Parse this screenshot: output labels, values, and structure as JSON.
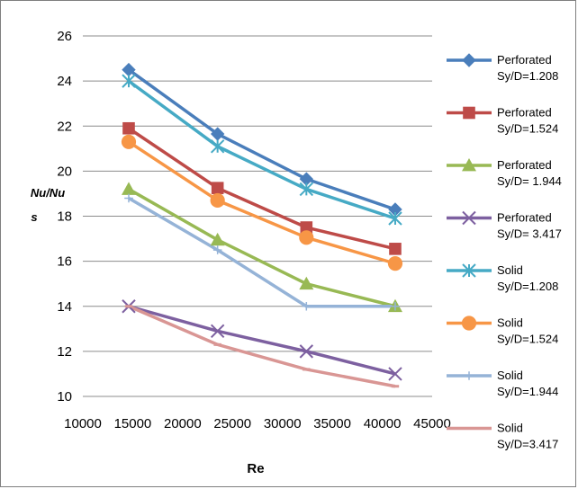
{
  "chart_data": {
    "type": "line",
    "xlabel": "Re",
    "ylabel_line1": "Nu/Nu",
    "ylabel_line2": "s",
    "xlim": [
      10000,
      45000
    ],
    "ylim": [
      10,
      26
    ],
    "x_ticks": [
      "10000",
      "15000",
      "20000",
      "25000",
      "30000",
      "35000",
      "40000",
      "45000"
    ],
    "y_ticks": [
      "10",
      "12",
      "14",
      "16",
      "18",
      "20",
      "22",
      "24",
      "26"
    ],
    "grid": true,
    "legend_position": "right",
    "series": [
      {
        "name_line1": "Perforated",
        "name_line2": "Sy/D=1.208",
        "color": "#4a7ebb",
        "marker": "diamond",
        "x": [
          14600,
          23500,
          32400,
          41300
        ],
        "y": [
          24.5,
          21.65,
          19.65,
          18.3
        ]
      },
      {
        "name_line1": "Perforated",
        "name_line2": "Sy/D=1.524",
        "color": "#be4b48",
        "marker": "square",
        "x": [
          14600,
          23500,
          32400,
          41300
        ],
        "y": [
          21.9,
          19.25,
          17.5,
          16.55
        ]
      },
      {
        "name_line1": "Perforated",
        "name_line2": "Sy/D= 1.944",
        "color": "#98b954",
        "marker": "triangle",
        "x": [
          14600,
          23500,
          32400,
          41300
        ],
        "y": [
          19.2,
          16.95,
          15.0,
          14.0
        ]
      },
      {
        "name_line1": "Perforated",
        "name_line2": "Sy/D= 3.417",
        "color": "#7d60a0",
        "marker": "x",
        "x": [
          14600,
          23500,
          32400,
          41300
        ],
        "y": [
          14.0,
          12.9,
          12.0,
          11.0
        ]
      },
      {
        "name_line1": "Solid",
        "name_line2": "Sy/D=1.208",
        "color": "#46aac5",
        "marker": "star",
        "x": [
          14600,
          23500,
          32400,
          41300
        ],
        "y": [
          24.0,
          21.1,
          19.2,
          17.9
        ]
      },
      {
        "name_line1": "Solid",
        "name_line2": "Sy/D=1.524",
        "color": "#f79646",
        "marker": "circle",
        "x": [
          14600,
          23500,
          32400,
          41300
        ],
        "y": [
          21.3,
          18.7,
          17.05,
          15.9
        ]
      },
      {
        "name_line1": "Solid",
        "name_line2": "Sy/D=1.944",
        "color": "#95b3d7",
        "marker": "plus",
        "x": [
          14600,
          23500,
          32400,
          41300
        ],
        "y": [
          18.8,
          16.5,
          14.0,
          14.0
        ]
      },
      {
        "name_line1": "Solid",
        "name_line2": "Sy/D=3.417",
        "color": "#d99694",
        "marker": "dash",
        "x": [
          14600,
          23500,
          32400,
          41300
        ],
        "y": [
          14.0,
          12.3,
          11.2,
          10.45
        ]
      }
    ]
  }
}
